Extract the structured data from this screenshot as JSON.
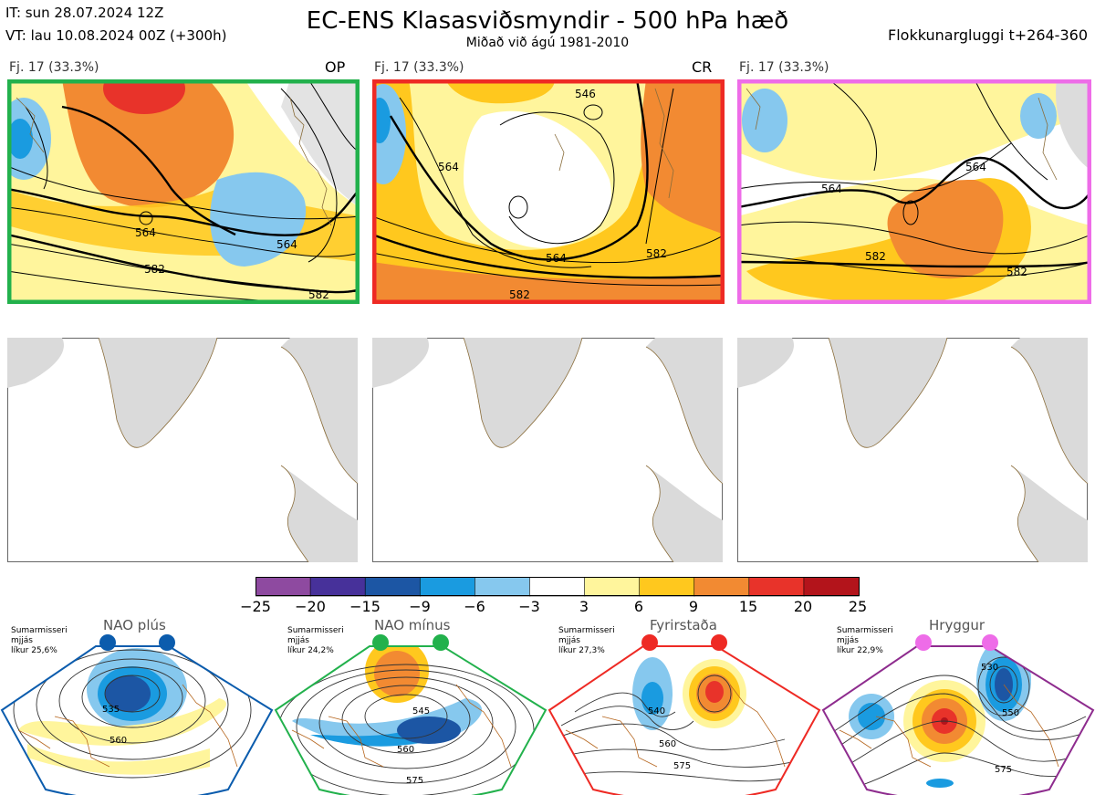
{
  "header": {
    "it_line": "IT: sun 28.07.2024 12Z",
    "vt_line": "VT: lau 10.08.2024 00Z  (+300h)",
    "title": "EC-ENS Klasasviðsmyndir - 500 hPa hæð",
    "subtitle": "Miðað við ágú 1981-2010",
    "window": "Flokkunargluggi t+264-360"
  },
  "panels": [
    {
      "label": "Fj. 17 (33.3%)",
      "code": "OP",
      "border_color": "#22b14c",
      "contours": [
        "564",
        "564",
        "582",
        "582"
      ]
    },
    {
      "label": "Fj. 17 (33.3%)",
      "code": "CR",
      "border_color": "#ee2a24",
      "contours": [
        "546",
        "564",
        "564",
        "582",
        "582"
      ]
    },
    {
      "label": "Fj. 17 (33.3%)",
      "code": "",
      "border_color": "#ee6ce8",
      "contours": [
        "564",
        "564",
        "582",
        "582"
      ]
    }
  ],
  "colorbar": {
    "ticks": [
      "−25",
      "−20",
      "−15",
      "−9",
      "−6",
      "−3",
      "3",
      "6",
      "9",
      "15",
      "20",
      "25"
    ],
    "colors": [
      "#8e4aa0",
      "#47319a",
      "#1c56a4",
      "#1a9be0",
      "#86c8ee",
      "#ffffff",
      "#fff59c",
      "#ffc81e",
      "#f28a32",
      "#e8332a",
      "#b3141b"
    ]
  },
  "regimes": [
    {
      "name": "NAO plús",
      "season": "Sumarmisseri",
      "qualifier": "mjjás",
      "likelihood": "líkur 25,6%",
      "color": "#0b5cad",
      "contours": [
        "535",
        "560"
      ]
    },
    {
      "name": "NAO mínus",
      "season": "Sumarmisseri",
      "qualifier": "mjjás",
      "likelihood": "líkur 24,2%",
      "color": "#22b14c",
      "contours": [
        "545",
        "560",
        "575"
      ]
    },
    {
      "name": "Fyrirstaða",
      "season": "Sumarmisseri",
      "qualifier": "mjjás",
      "likelihood": "líkur 27,3%",
      "color": "#ee2a24",
      "contours": [
        "540",
        "560",
        "575"
      ]
    },
    {
      "name": "Hryggur",
      "season": "Sumarmisseri",
      "qualifier": "mjjás",
      "likelihood": "líkur 22,9%",
      "color": "#8e2c8e",
      "dot_color": "#ee6ce8",
      "contours": [
        "530",
        "550",
        "575"
      ]
    }
  ]
}
